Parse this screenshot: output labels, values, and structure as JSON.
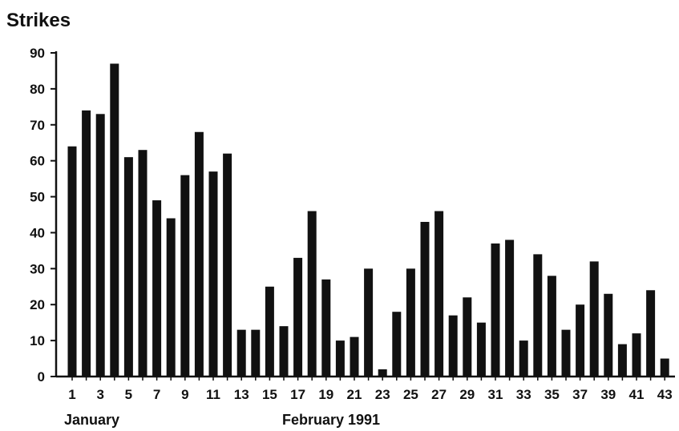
{
  "chart_data": {
    "type": "bar",
    "ylabel": "Strikes",
    "ylim": [
      0,
      90
    ],
    "yticks": [
      0,
      10,
      20,
      30,
      40,
      50,
      60,
      70,
      80,
      90
    ],
    "categories": [
      1,
      2,
      3,
      4,
      5,
      6,
      7,
      8,
      9,
      10,
      11,
      12,
      13,
      14,
      15,
      16,
      17,
      18,
      19,
      20,
      21,
      22,
      23,
      24,
      25,
      26,
      27,
      28,
      29,
      30,
      31,
      32,
      33,
      34,
      35,
      36,
      37,
      38,
      39,
      40,
      41,
      42,
      43
    ],
    "xtick_labels": [
      1,
      3,
      5,
      7,
      9,
      11,
      13,
      15,
      17,
      19,
      21,
      23,
      25,
      27,
      29,
      31,
      33,
      35,
      37,
      39,
      41,
      43
    ],
    "values": [
      64,
      74,
      73,
      87,
      61,
      63,
      49,
      44,
      56,
      68,
      57,
      62,
      13,
      13,
      25,
      14,
      33,
      46,
      27,
      10,
      11,
      30,
      2,
      18,
      30,
      43,
      46,
      17,
      22,
      15,
      37,
      38,
      10,
      34,
      28,
      13,
      20,
      32,
      23,
      9,
      12,
      24,
      5
    ],
    "period_labels": [
      "January",
      "February 1991"
    ],
    "bar_color": "#111111",
    "grid": false,
    "legend": "none"
  }
}
